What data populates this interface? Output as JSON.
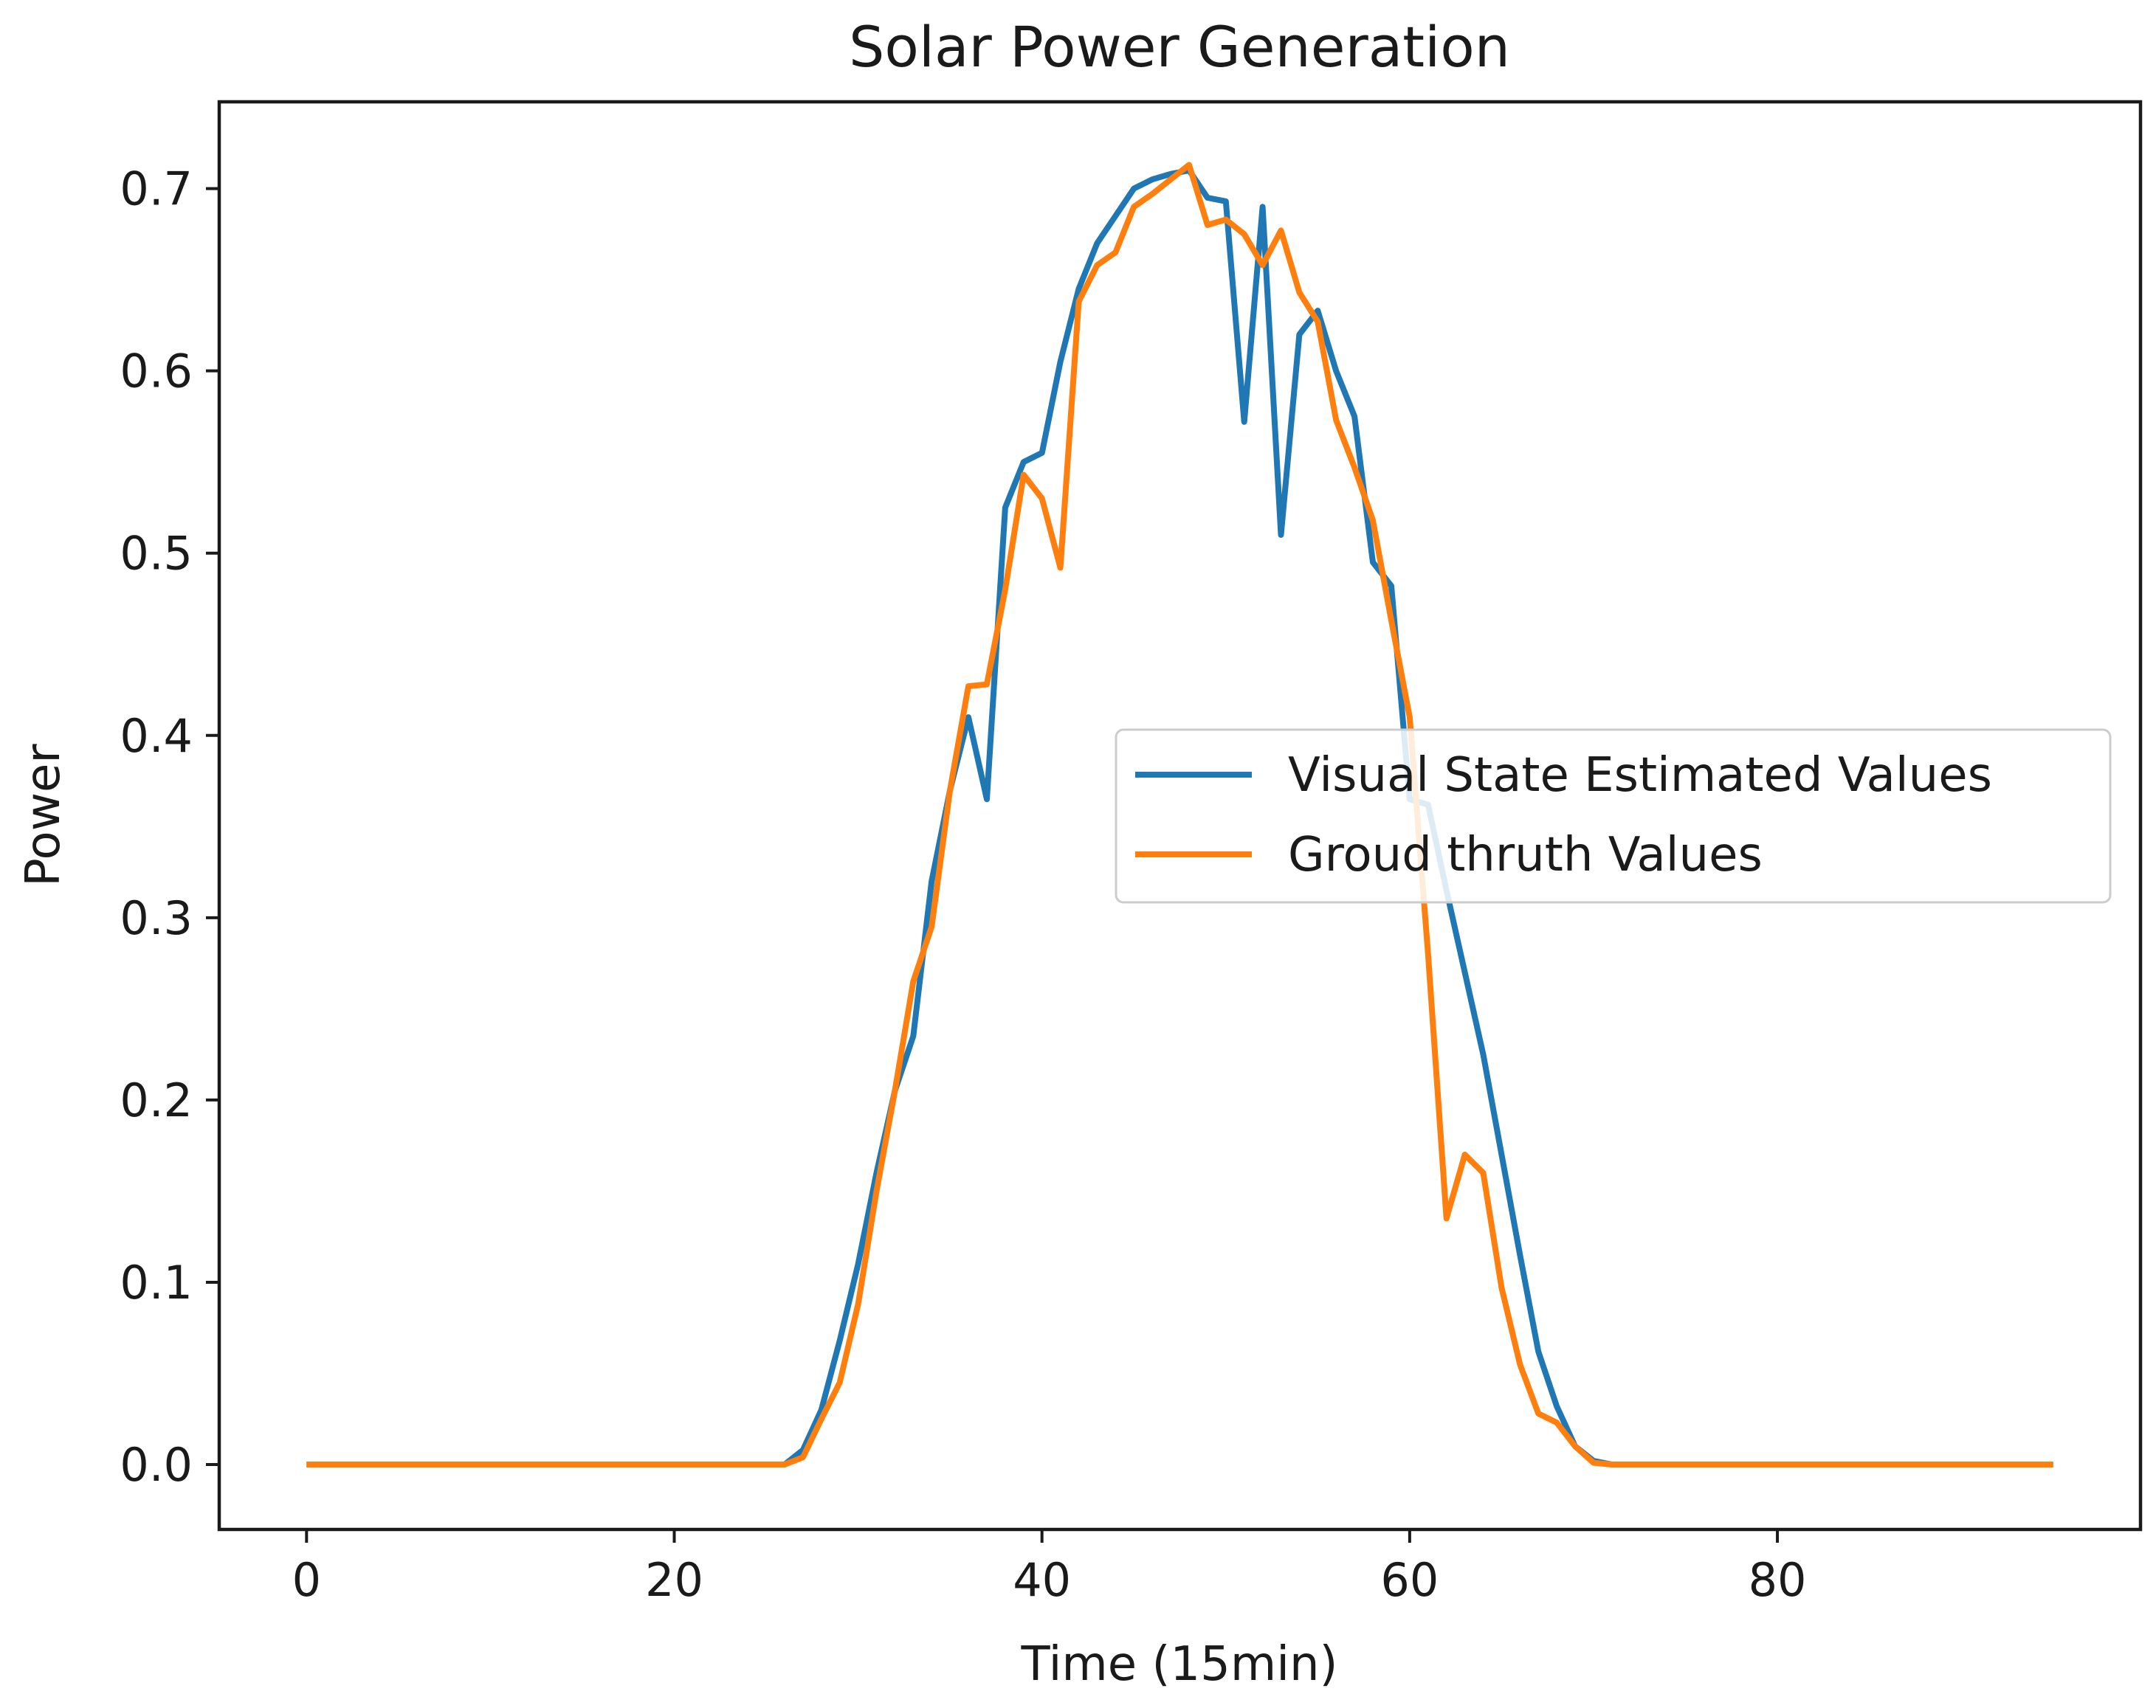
{
  "chart_data": {
    "type": "line",
    "title": "Solar Power Generation",
    "xlabel": "Time (15min)",
    "ylabel": "Power",
    "xlim": [
      -4.75,
      99.75
    ],
    "ylim": [
      -0.0356,
      0.7476
    ],
    "xticks": [
      0,
      20,
      40,
      60,
      80
    ],
    "xtick_labels": [
      "0",
      "20",
      "40",
      "60",
      "80"
    ],
    "yticks": [
      0.0,
      0.1,
      0.2,
      0.3,
      0.4,
      0.5,
      0.6,
      0.7
    ],
    "ytick_labels": [
      "0.0",
      "0.1",
      "0.2",
      "0.3",
      "0.4",
      "0.5",
      "0.6",
      "0.7"
    ],
    "grid": false,
    "legend_position": "center-right",
    "series": [
      {
        "name": "Visual State Estimated Values",
        "color": "#1f77b4",
        "x": [
          0,
          1,
          2,
          3,
          4,
          5,
          6,
          7,
          8,
          9,
          10,
          11,
          12,
          13,
          14,
          15,
          16,
          17,
          18,
          19,
          20,
          21,
          22,
          23,
          24,
          25,
          26,
          27,
          28,
          29,
          30,
          31,
          32,
          33,
          34,
          35,
          36,
          37,
          38,
          39,
          40,
          41,
          42,
          43,
          44,
          45,
          46,
          47,
          48,
          49,
          50,
          51,
          52,
          53,
          54,
          55,
          56,
          57,
          58,
          59,
          60,
          61,
          62,
          63,
          64,
          65,
          66,
          67,
          68,
          69,
          70,
          71,
          72,
          73,
          74,
          75,
          76,
          77,
          78,
          79,
          80,
          81,
          82,
          83,
          84,
          85,
          86,
          87,
          88,
          89,
          90,
          91,
          92,
          93,
          94,
          95
        ],
        "values": [
          0,
          0,
          0,
          0,
          0,
          0,
          0,
          0,
          0,
          0,
          0,
          0,
          0,
          0,
          0,
          0,
          0,
          0,
          0,
          0,
          0,
          0,
          0,
          0,
          0,
          0,
          0,
          0.008,
          0.03,
          0.068,
          0.11,
          0.16,
          0.205,
          0.235,
          0.32,
          0.37,
          0.41,
          0.365,
          0.525,
          0.55,
          0.555,
          0.605,
          0.645,
          0.67,
          0.685,
          0.7,
          0.705,
          0.708,
          0.71,
          0.695,
          0.693,
          0.572,
          0.69,
          0.51,
          0.62,
          0.633,
          0.6,
          0.575,
          0.495,
          0.482,
          0.365,
          0.362,
          0.315,
          0.27,
          0.225,
          0.17,
          0.115,
          0.062,
          0.032,
          0.01,
          0.002,
          0,
          0,
          0,
          0,
          0,
          0,
          0,
          0,
          0,
          0,
          0,
          0,
          0,
          0,
          0,
          0,
          0,
          0,
          0,
          0,
          0,
          0,
          0,
          0,
          0
        ]
      },
      {
        "name": "Groud thruth Values",
        "color": "#ff7f0e",
        "x": [
          0,
          1,
          2,
          3,
          4,
          5,
          6,
          7,
          8,
          9,
          10,
          11,
          12,
          13,
          14,
          15,
          16,
          17,
          18,
          19,
          20,
          21,
          22,
          23,
          24,
          25,
          26,
          27,
          28,
          29,
          30,
          31,
          32,
          33,
          34,
          35,
          36,
          37,
          38,
          39,
          40,
          41,
          42,
          43,
          44,
          45,
          46,
          47,
          48,
          49,
          50,
          51,
          52,
          53,
          54,
          55,
          56,
          57,
          58,
          59,
          60,
          61,
          62,
          63,
          64,
          65,
          66,
          67,
          68,
          69,
          70,
          71,
          72,
          73,
          74,
          75,
          76,
          77,
          78,
          79,
          80,
          81,
          82,
          83,
          84,
          85,
          86,
          87,
          88,
          89,
          90,
          91,
          92,
          93,
          94,
          95
        ],
        "values": [
          0,
          0,
          0,
          0,
          0,
          0,
          0,
          0,
          0,
          0,
          0,
          0,
          0,
          0,
          0,
          0,
          0,
          0,
          0,
          0,
          0,
          0,
          0,
          0,
          0,
          0,
          0,
          0.004,
          0.025,
          0.045,
          0.088,
          0.15,
          0.205,
          0.265,
          0.295,
          0.37,
          0.427,
          0.428,
          0.48,
          0.543,
          0.53,
          0.492,
          0.638,
          0.658,
          0.665,
          0.69,
          0.697,
          0.705,
          0.713,
          0.68,
          0.683,
          0.675,
          0.658,
          0.677,
          0.643,
          0.627,
          0.573,
          0.547,
          0.518,
          0.463,
          0.41,
          0.28,
          0.135,
          0.17,
          0.16,
          0.097,
          0.055,
          0.028,
          0.023,
          0.01,
          0.001,
          0,
          0,
          0,
          0,
          0,
          0,
          0,
          0,
          0,
          0,
          0,
          0,
          0,
          0,
          0,
          0,
          0,
          0,
          0,
          0,
          0,
          0,
          0,
          0,
          0
        ]
      }
    ]
  }
}
